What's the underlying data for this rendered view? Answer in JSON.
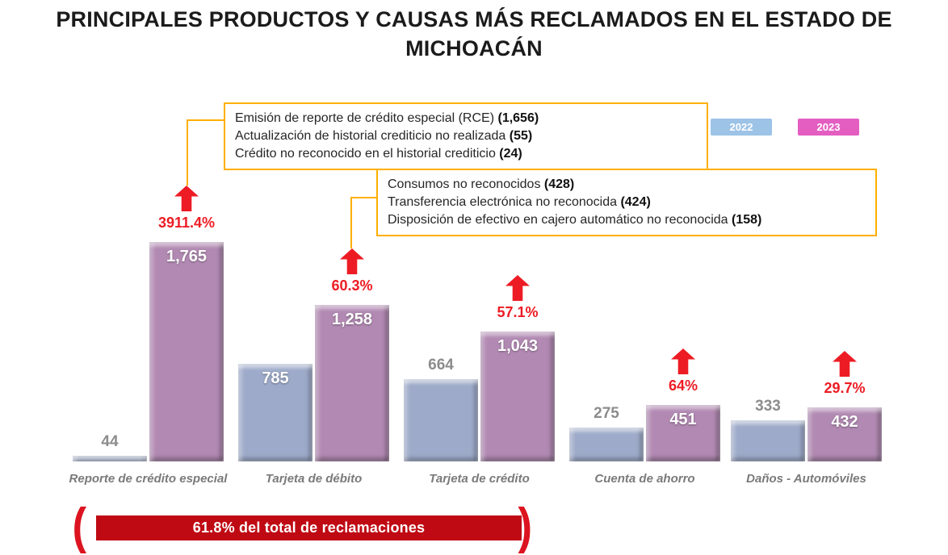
{
  "header": {
    "line1": "PRINCIPALES PRODUCTOS Y CAUSAS MÁS RECLAMADOS EN EL ESTADO DE",
    "line2": "MICHOACÁN"
  },
  "legend": {
    "items": [
      {
        "label": "2022",
        "color": "#9dc3e6"
      },
      {
        "label": "2023",
        "color": "#e45ec2"
      }
    ]
  },
  "callouts": [
    {
      "lines": [
        {
          "text": "Emisión de reporte de crédito especial (RCE) ",
          "value": "(1,656)"
        },
        {
          "text": "Actualización de historial crediticio no realizada ",
          "value": "(55)"
        },
        {
          "text": "Crédito no reconocido en el historial crediticio ",
          "value": "(24)"
        }
      ]
    },
    {
      "lines": [
        {
          "text": "Consumos no reconocidos ",
          "value": "(428)"
        },
        {
          "text": "Transferencia electrónica no reconocida ",
          "value": "(424)"
        },
        {
          "text": "Disposición de efectivo en cajero automático no reconocida ",
          "value": "(158)"
        }
      ]
    }
  ],
  "chart_data": {
    "type": "bar",
    "title": "PRINCIPALES PRODUCTOS Y CAUSAS MÁS RECLAMADOS EN EL ESTADO DE MICHOACÁN",
    "categories": [
      "Reporte de crédito especial",
      "Tarjeta de débito",
      "Tarjeta de crédito",
      "Cuenta de ahorro",
      "Daños - Automóviles"
    ],
    "series": [
      {
        "name": "2022",
        "legend_color": "#9dc3e6",
        "bar_color": "#9daac9",
        "values": [
          44,
          785,
          664,
          275,
          333
        ],
        "labels": [
          "44",
          "785",
          "664",
          "275",
          "333"
        ],
        "label_inside": [
          false,
          true,
          false,
          false,
          false
        ]
      },
      {
        "name": "2023",
        "legend_color": "#e45ec2",
        "bar_color": "#b189b2",
        "values": [
          1765,
          1258,
          1043,
          451,
          432
        ],
        "labels": [
          "1,765",
          "1,258",
          "1,043",
          "451",
          "432"
        ],
        "label_inside": [
          true,
          true,
          true,
          true,
          true
        ]
      }
    ],
    "pct_change": [
      "3911.4%",
      "60.3%",
      "57.1%",
      "64%",
      "29.7%"
    ],
    "arrow_color": "#ed1c24",
    "pct_color": "#ed1c24",
    "legend_position": "top-right",
    "grid": false,
    "ylim": [
      0,
      1765
    ],
    "xlabel": "",
    "ylabel": ""
  },
  "footer": {
    "banner_label": "61.8% del total de reclamaciones",
    "banner_color": "#bf0a14",
    "bracket_open": "(",
    "bracket_close": ")"
  }
}
